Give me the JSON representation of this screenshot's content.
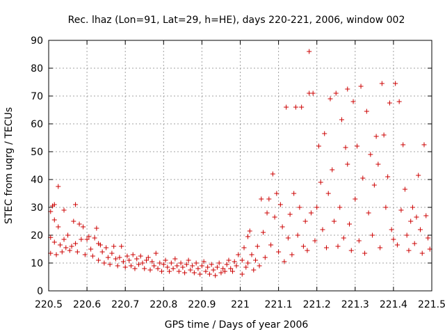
{
  "chart_data": {
    "type": "scatter",
    "title": "Rec. lhaz (Lon=91, Lat=29, h=HE), days 220-221, 2006, window 002",
    "xlabel": "GPS time / Days of year 2006",
    "ylabel": "STEC from uqrg / TECUs",
    "xlim": [
      220.5,
      221.5
    ],
    "ylim": [
      0,
      90
    ],
    "xticks": [
      "220.5",
      "220.6",
      "220.7",
      "220.8",
      "220.9",
      "221",
      "221.1",
      "221.2",
      "221.3",
      "221.4",
      "221.5"
    ],
    "yticks": [
      "0",
      "10",
      "20",
      "30",
      "40",
      "50",
      "60",
      "70",
      "80",
      "90"
    ],
    "grid": true,
    "marker": "+",
    "color": "#cc0000",
    "points": [
      [
        220.505,
        13.5
      ],
      [
        220.505,
        19.2
      ],
      [
        220.505,
        28.5
      ],
      [
        220.51,
        30.5
      ],
      [
        220.515,
        31.0
      ],
      [
        220.515,
        25.5
      ],
      [
        220.515,
        17.5
      ],
      [
        220.52,
        13.0
      ],
      [
        220.525,
        37.5
      ],
      [
        220.525,
        23.0
      ],
      [
        220.53,
        16.5
      ],
      [
        220.535,
        14.0
      ],
      [
        220.54,
        29.0
      ],
      [
        220.54,
        18.5
      ],
      [
        220.545,
        15.5
      ],
      [
        220.55,
        20.0
      ],
      [
        220.555,
        14.5
      ],
      [
        220.56,
        16.0
      ],
      [
        220.565,
        25.0
      ],
      [
        220.57,
        31.0
      ],
      [
        220.57,
        17.0
      ],
      [
        220.575,
        14.0
      ],
      [
        220.58,
        24.0
      ],
      [
        220.585,
        18.5
      ],
      [
        220.59,
        23.0
      ],
      [
        220.595,
        13.0
      ],
      [
        220.6,
        18.5
      ],
      [
        220.605,
        19.5
      ],
      [
        220.61,
        15.0
      ],
      [
        220.615,
        12.5
      ],
      [
        220.62,
        19.0
      ],
      [
        220.625,
        22.5
      ],
      [
        220.63,
        17.0
      ],
      [
        220.63,
        11.0
      ],
      [
        220.635,
        16.5
      ],
      [
        220.64,
        14.0
      ],
      [
        220.645,
        10.0
      ],
      [
        220.65,
        15.5
      ],
      [
        220.655,
        12.0
      ],
      [
        220.66,
        9.5
      ],
      [
        220.665,
        13.5
      ],
      [
        220.67,
        16.0
      ],
      [
        220.675,
        11.5
      ],
      [
        220.68,
        9.0
      ],
      [
        220.685,
        12.0
      ],
      [
        220.69,
        16.0
      ],
      [
        220.695,
        10.5
      ],
      [
        220.7,
        8.5
      ],
      [
        220.705,
        12.5
      ],
      [
        220.71,
        11.0
      ],
      [
        220.715,
        9.0
      ],
      [
        220.72,
        13.0
      ],
      [
        220.725,
        8.0
      ],
      [
        220.73,
        11.5
      ],
      [
        220.735,
        9.5
      ],
      [
        220.74,
        12.5
      ],
      [
        220.745,
        10.0
      ],
      [
        220.75,
        8.0
      ],
      [
        220.755,
        11.0
      ],
      [
        220.76,
        12.0
      ],
      [
        220.765,
        7.5
      ],
      [
        220.77,
        10.5
      ],
      [
        220.775,
        9.0
      ],
      [
        220.78,
        13.5
      ],
      [
        220.785,
        8.0
      ],
      [
        220.79,
        10.0
      ],
      [
        220.795,
        7.0
      ],
      [
        220.8,
        9.5
      ],
      [
        220.805,
        11.0
      ],
      [
        220.81,
        8.5
      ],
      [
        220.815,
        7.0
      ],
      [
        220.82,
        10.0
      ],
      [
        220.825,
        8.0
      ],
      [
        220.83,
        11.5
      ],
      [
        220.835,
        9.0
      ],
      [
        220.84,
        7.0
      ],
      [
        220.845,
        10.0
      ],
      [
        220.85,
        8.5
      ],
      [
        220.855,
        6.5
      ],
      [
        220.86,
        9.5
      ],
      [
        220.865,
        11.0
      ],
      [
        220.87,
        7.5
      ],
      [
        220.875,
        9.0
      ],
      [
        220.88,
        6.5
      ],
      [
        220.885,
        10.0
      ],
      [
        220.89,
        8.0
      ],
      [
        220.895,
        6.0
      ],
      [
        220.9,
        9.0
      ],
      [
        220.905,
        10.5
      ],
      [
        220.91,
        7.0
      ],
      [
        220.915,
        8.5
      ],
      [
        220.92,
        6.0
      ],
      [
        220.925,
        9.5
      ],
      [
        220.93,
        7.5
      ],
      [
        220.935,
        5.5
      ],
      [
        220.94,
        8.5
      ],
      [
        220.945,
        10.0
      ],
      [
        220.95,
        6.5
      ],
      [
        220.955,
        8.0
      ],
      [
        220.96,
        7.0
      ],
      [
        220.965,
        9.5
      ],
      [
        220.97,
        11.0
      ],
      [
        220.975,
        8.0
      ],
      [
        220.98,
        7.0
      ],
      [
        220.985,
        10.5
      ],
      [
        220.99,
        9.0
      ],
      [
        220.995,
        13.0
      ],
      [
        221.005,
        11.0
      ],
      [
        221.005,
        6.0
      ],
      [
        221.01,
        15.5
      ],
      [
        221.015,
        8.5
      ],
      [
        221.02,
        19.5
      ],
      [
        221.02,
        10.0
      ],
      [
        221.025,
        21.5
      ],
      [
        221.03,
        13.0
      ],
      [
        221.035,
        7.5
      ],
      [
        221.04,
        11.0
      ],
      [
        221.045,
        16.0
      ],
      [
        221.05,
        9.0
      ],
      [
        221.055,
        33.0
      ],
      [
        221.06,
        21.0
      ],
      [
        221.065,
        12.0
      ],
      [
        221.07,
        28.0
      ],
      [
        221.075,
        33.0
      ],
      [
        221.08,
        16.5
      ],
      [
        221.085,
        42.0
      ],
      [
        221.09,
        26.5
      ],
      [
        221.095,
        35.0
      ],
      [
        221.1,
        14.0
      ],
      [
        221.105,
        31.0
      ],
      [
        221.11,
        23.0
      ],
      [
        221.115,
        10.5
      ],
      [
        221.12,
        66.0
      ],
      [
        221.125,
        19.0
      ],
      [
        221.13,
        27.5
      ],
      [
        221.135,
        13.0
      ],
      [
        221.14,
        35.0
      ],
      [
        221.145,
        66.0
      ],
      [
        221.15,
        20.0
      ],
      [
        221.155,
        30.0
      ],
      [
        221.16,
        66.0
      ],
      [
        221.165,
        16.0
      ],
      [
        221.17,
        25.0
      ],
      [
        221.175,
        14.5
      ],
      [
        221.18,
        86.0
      ],
      [
        221.18,
        71.0
      ],
      [
        221.185,
        28.0
      ],
      [
        221.19,
        71.0
      ],
      [
        221.195,
        18.0
      ],
      [
        221.2,
        30.0
      ],
      [
        221.205,
        52.0
      ],
      [
        221.21,
        39.0
      ],
      [
        221.215,
        22.0
      ],
      [
        221.22,
        56.5
      ],
      [
        221.225,
        15.5
      ],
      [
        221.23,
        35.0
      ],
      [
        221.235,
        69.0
      ],
      [
        221.24,
        43.5
      ],
      [
        221.245,
        25.0
      ],
      [
        221.25,
        71.0
      ],
      [
        221.255,
        16.0
      ],
      [
        221.26,
        30.0
      ],
      [
        221.265,
        61.5
      ],
      [
        221.27,
        19.0
      ],
      [
        221.275,
        51.5
      ],
      [
        221.28,
        72.5
      ],
      [
        221.28,
        45.5
      ],
      [
        221.285,
        24.0
      ],
      [
        221.29,
        14.5
      ],
      [
        221.295,
        68.0
      ],
      [
        221.3,
        33.0
      ],
      [
        221.305,
        52.0
      ],
      [
        221.31,
        18.0
      ],
      [
        221.315,
        73.5
      ],
      [
        221.32,
        40.5
      ],
      [
        221.325,
        13.5
      ],
      [
        221.33,
        64.5
      ],
      [
        221.335,
        28.0
      ],
      [
        221.34,
        49.0
      ],
      [
        221.345,
        20.0
      ],
      [
        221.35,
        38.0
      ],
      [
        221.355,
        55.5
      ],
      [
        221.36,
        45.5
      ],
      [
        221.365,
        15.5
      ],
      [
        221.37,
        74.5
      ],
      [
        221.375,
        56.0
      ],
      [
        221.38,
        30.0
      ],
      [
        221.385,
        41.0
      ],
      [
        221.39,
        67.5
      ],
      [
        221.395,
        22.0
      ],
      [
        221.4,
        18.5
      ],
      [
        221.405,
        74.5
      ],
      [
        221.41,
        16.5
      ],
      [
        221.415,
        68.0
      ],
      [
        221.42,
        29.0
      ],
      [
        221.425,
        52.5
      ],
      [
        221.43,
        36.5
      ],
      [
        221.435,
        20.0
      ],
      [
        221.44,
        14.5
      ],
      [
        221.445,
        25.0
      ],
      [
        221.45,
        30.0
      ],
      [
        221.455,
        17.0
      ],
      [
        221.46,
        26.5
      ],
      [
        221.465,
        41.5
      ],
      [
        221.47,
        22.0
      ],
      [
        221.475,
        13.5
      ],
      [
        221.48,
        52.5
      ],
      [
        221.485,
        27.0
      ],
      [
        221.49,
        19.0
      ],
      [
        221.495,
        15.0
      ]
    ]
  }
}
